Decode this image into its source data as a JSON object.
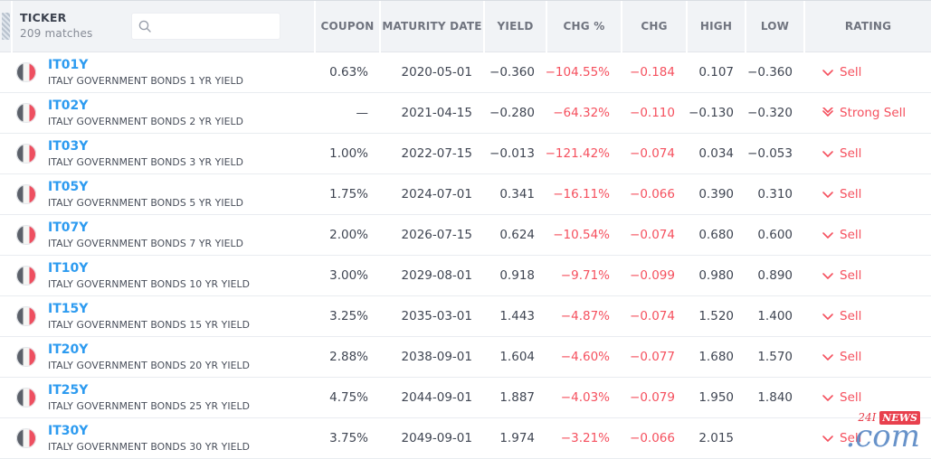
{
  "header": {
    "ticker_label": "TICKER",
    "matches": "209 matches",
    "search_placeholder": "",
    "search_value": "",
    "columns": [
      "COUPON",
      "MATURITY DATE",
      "YIELD",
      "CHG %",
      "CHG",
      "HIGH",
      "LOW",
      "RATING"
    ]
  },
  "colors": {
    "accent_blue": "#2d9bf0",
    "negative_red": "#f5505e",
    "header_bg": "#f1f3f6",
    "flag_gray": "#5b6069",
    "flag_red": "#ee4f60"
  },
  "icons": {
    "corner": "hatch-corner-icon",
    "search": "search-icon",
    "flag": "italy-flag-icon",
    "sell": "chevron-down-icon",
    "strong_sell": "double-chevron-down-icon"
  },
  "rows": [
    {
      "symbol": "IT01Y",
      "name": "ITALY GOVERNMENT BONDS 1 YR YIELD",
      "coupon": "0.63%",
      "maturity": "2020-05-01",
      "yield": "−0.360",
      "chg_pct": "−104.55%",
      "chg": "−0.184",
      "high": "0.107",
      "low": "−0.360",
      "rating": "Sell",
      "rating_icon": "chevron-down-icon"
    },
    {
      "symbol": "IT02Y",
      "name": "ITALY GOVERNMENT BONDS 2 YR YIELD",
      "coupon": "—",
      "maturity": "2021-04-15",
      "yield": "−0.280",
      "chg_pct": "−64.32%",
      "chg": "−0.110",
      "high": "−0.130",
      "low": "−0.320",
      "rating": "Strong Sell",
      "rating_icon": "double-chevron-down-icon"
    },
    {
      "symbol": "IT03Y",
      "name": "ITALY GOVERNMENT BONDS 3 YR YIELD",
      "coupon": "1.00%",
      "maturity": "2022-07-15",
      "yield": "−0.013",
      "chg_pct": "−121.42%",
      "chg": "−0.074",
      "high": "0.034",
      "low": "−0.053",
      "rating": "Sell",
      "rating_icon": "chevron-down-icon"
    },
    {
      "symbol": "IT05Y",
      "name": "ITALY GOVERNMENT BONDS 5 YR YIELD",
      "coupon": "1.75%",
      "maturity": "2024-07-01",
      "yield": "0.341",
      "chg_pct": "−16.11%",
      "chg": "−0.066",
      "high": "0.390",
      "low": "0.310",
      "rating": "Sell",
      "rating_icon": "chevron-down-icon"
    },
    {
      "symbol": "IT07Y",
      "name": "ITALY GOVERNMENT BONDS 7 YR YIELD",
      "coupon": "2.00%",
      "maturity": "2026-07-15",
      "yield": "0.624",
      "chg_pct": "−10.54%",
      "chg": "−0.074",
      "high": "0.680",
      "low": "0.600",
      "rating": "Sell",
      "rating_icon": "chevron-down-icon"
    },
    {
      "symbol": "IT10Y",
      "name": "ITALY GOVERNMENT BONDS 10 YR YIELD",
      "coupon": "3.00%",
      "maturity": "2029-08-01",
      "yield": "0.918",
      "chg_pct": "−9.71%",
      "chg": "−0.099",
      "high": "0.980",
      "low": "0.890",
      "rating": "Sell",
      "rating_icon": "chevron-down-icon"
    },
    {
      "symbol": "IT15Y",
      "name": "ITALY GOVERNMENT BONDS 15 YR YIELD",
      "coupon": "3.25%",
      "maturity": "2035-03-01",
      "yield": "1.443",
      "chg_pct": "−4.87%",
      "chg": "−0.074",
      "high": "1.520",
      "low": "1.400",
      "rating": "Sell",
      "rating_icon": "chevron-down-icon"
    },
    {
      "symbol": "IT20Y",
      "name": "ITALY GOVERNMENT BONDS 20 YR YIELD",
      "coupon": "2.88%",
      "maturity": "2038-09-01",
      "yield": "1.604",
      "chg_pct": "−4.60%",
      "chg": "−0.077",
      "high": "1.680",
      "low": "1.570",
      "rating": "Sell",
      "rating_icon": "chevron-down-icon"
    },
    {
      "symbol": "IT25Y",
      "name": "ITALY GOVERNMENT BONDS 25 YR YIELD",
      "coupon": "4.75%",
      "maturity": "2044-09-01",
      "yield": "1.887",
      "chg_pct": "−4.03%",
      "chg": "−0.079",
      "high": "1.950",
      "low": "1.840",
      "rating": "Sell",
      "rating_icon": "chevron-down-icon"
    },
    {
      "symbol": "IT30Y",
      "name": "ITALY GOVERNMENT BONDS 30 YR YIELD",
      "coupon": "3.75%",
      "maturity": "2049-09-01",
      "yield": "1.974",
      "chg_pct": "−3.21%",
      "chg": "−0.066",
      "high": "2.015",
      "low": "",
      "rating": "Sell",
      "rating_icon": "chevron-down-icon"
    }
  ],
  "watermark": {
    "prefix": "24I",
    "badge": "NEWS",
    "suffix": ".com"
  }
}
